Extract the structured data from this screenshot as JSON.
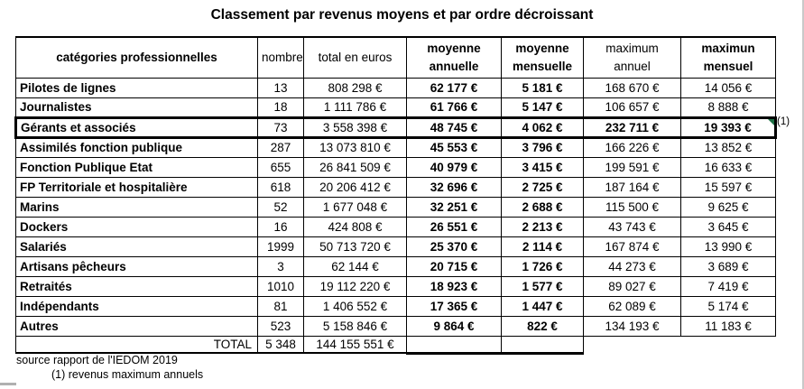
{
  "title": "Classement par revenus moyens et par ordre décroissant",
  "table": {
    "headers": [
      "catégories professionnelles",
      "nombre",
      "total en euros",
      "moyenne annuelle",
      "moyenne mensuelle",
      "maximum annuel",
      "maximun mensuel"
    ],
    "rows": [
      {
        "category": "Pilotes de lignes",
        "nombre": "13",
        "total": "808 298 €",
        "moy_annuelle": "62 177 €",
        "moy_mensuelle": "5 181 €",
        "max_annuel": "168 670 €",
        "max_mensuel": "14 056 €",
        "highlight": false,
        "marker": false
      },
      {
        "category": "Journalistes",
        "nombre": "18",
        "total": "1 111 786 €",
        "moy_annuelle": "61 766 €",
        "moy_mensuelle": "5 147 €",
        "max_annuel": "106 657 €",
        "max_mensuel": "8 888 €",
        "highlight": false,
        "marker": false
      },
      {
        "category": "Gérants et associés",
        "nombre": "73",
        "total": "3 558 398 €",
        "moy_annuelle": "48 745 €",
        "moy_mensuelle": "4 062 €",
        "max_annuel": "232 711 €",
        "max_mensuel": "19 393 €",
        "highlight": true,
        "marker": true
      },
      {
        "category": "Assimilés fonction publique",
        "nombre": "287",
        "total": "13 073 810 €",
        "moy_annuelle": "45 553 €",
        "moy_mensuelle": "3 796 €",
        "max_annuel": "166 226 €",
        "max_mensuel": "13 852 €",
        "highlight": false,
        "marker": false
      },
      {
        "category": "Fonction Publique Etat",
        "nombre": "655",
        "total": "26 841 509 €",
        "moy_annuelle": "40 979 €",
        "moy_mensuelle": "3 415 €",
        "max_annuel": "199 591 €",
        "max_mensuel": "16 633 €",
        "highlight": false,
        "marker": false
      },
      {
        "category": "FP Territoriale et hospitalière",
        "nombre": "618",
        "total": "20 206 412 €",
        "moy_annuelle": "32 696 €",
        "moy_mensuelle": "2 725 €",
        "max_annuel": "187 164 €",
        "max_mensuel": "15 597 €",
        "highlight": false,
        "marker": false
      },
      {
        "category": "Marins",
        "nombre": "52",
        "total": "1 677 048 €",
        "moy_annuelle": "32 251 €",
        "moy_mensuelle": "2 688 €",
        "max_annuel": "115 500 €",
        "max_mensuel": "9 625 €",
        "highlight": false,
        "marker": false
      },
      {
        "category": "Dockers",
        "nombre": "16",
        "total": "424 808 €",
        "moy_annuelle": "26 551 €",
        "moy_mensuelle": "2 213 €",
        "max_annuel": "43 743 €",
        "max_mensuel": "3 645 €",
        "highlight": false,
        "marker": false
      },
      {
        "category": "Salariés",
        "nombre": "1999",
        "total": "50 713 720 €",
        "moy_annuelle": "25 370 €",
        "moy_mensuelle": "2 114 €",
        "max_annuel": "167 874 €",
        "max_mensuel": "13 990 €",
        "highlight": false,
        "marker": false
      },
      {
        "category": "Artisans pêcheurs",
        "nombre": "3",
        "total": "62 144 €",
        "moy_annuelle": "20 715 €",
        "moy_mensuelle": "1 726 €",
        "max_annuel": "44 273 €",
        "max_mensuel": "3 689 €",
        "highlight": false,
        "marker": false
      },
      {
        "category": "Retraités",
        "nombre": "1010",
        "total": "19 112 220 €",
        "moy_annuelle": "18 923 €",
        "moy_mensuelle": "1 577 €",
        "max_annuel": "89 027 €",
        "max_mensuel": "7 419 €",
        "highlight": false,
        "marker": false
      },
      {
        "category": "Indépendants",
        "nombre": "81",
        "total": "1 406 552 €",
        "moy_annuelle": "17 365 €",
        "moy_mensuelle": "1 447 €",
        "max_annuel": "62 089 €",
        "max_mensuel": "5 174 €",
        "highlight": false,
        "marker": false
      },
      {
        "category": "Autres",
        "nombre": "523",
        "total": "5 158 846 €",
        "moy_annuelle": "9 864 €",
        "moy_mensuelle": "822 €",
        "max_annuel": "134 193 €",
        "max_mensuel": "11 183 €",
        "highlight": false,
        "marker": false
      }
    ],
    "total_row": {
      "label": "TOTAL",
      "nombre": "5 348",
      "total": "144 155 551 €"
    }
  },
  "notes": {
    "source": "source rapport de l'IEDOM 2019",
    "footnote": "(1) revenus maximum annuels",
    "annotation": "(1)"
  },
  "colors": {
    "comment_marker": "#1e7145",
    "right_edge": "#c9c9c9",
    "bottom_stub": "#b0b0b0"
  }
}
